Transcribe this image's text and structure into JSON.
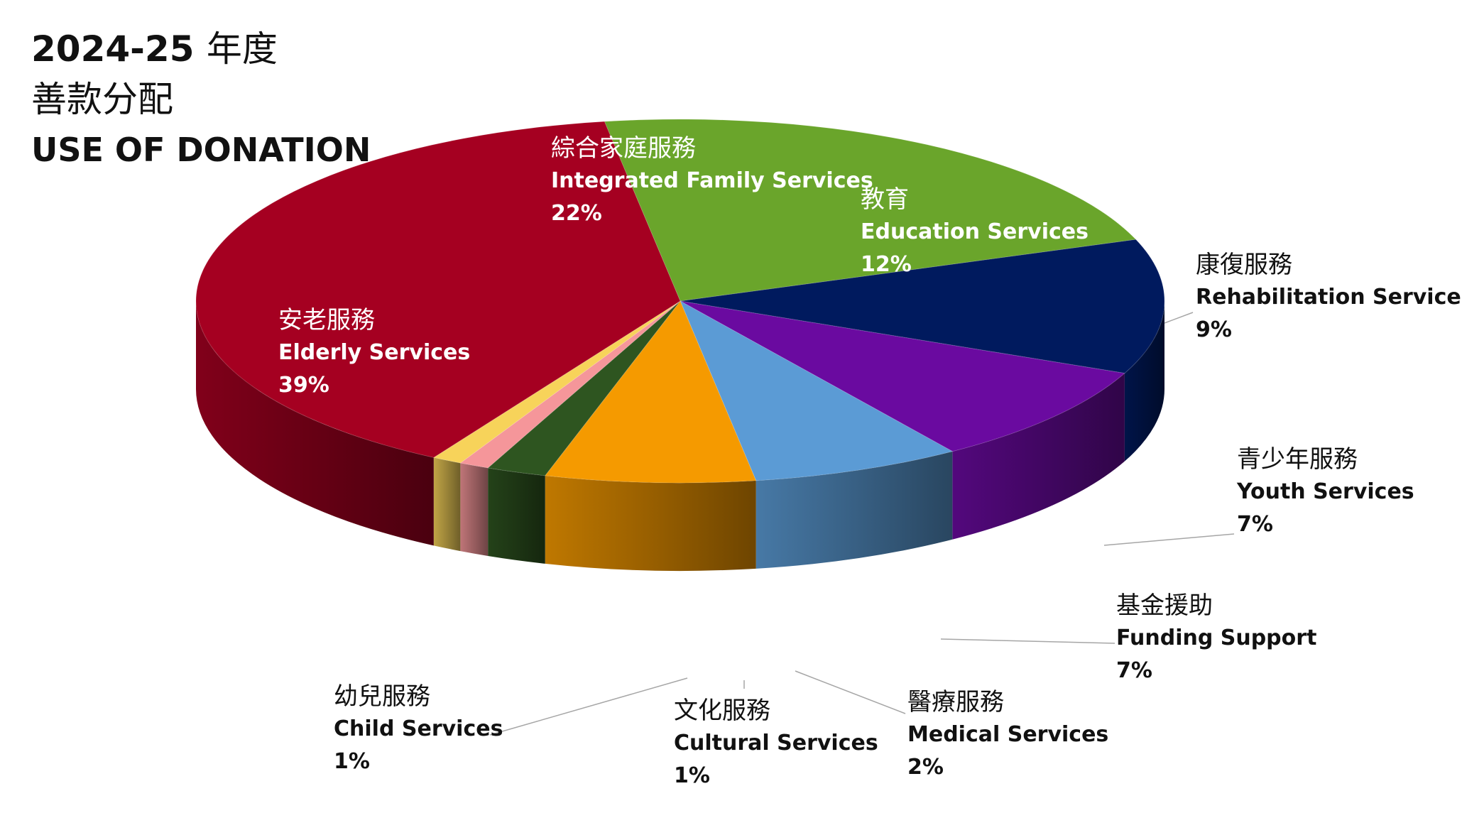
{
  "title": {
    "year": "2024-25",
    "year_suffix": "年度",
    "zh": "善款分配",
    "en": "USE OF DONATION"
  },
  "chart_data": {
    "type": "pie",
    "style": "3d",
    "slices": [
      {
        "zh": "綜合家庭服務",
        "en": "Integrated Family Services",
        "value": 22,
        "label": "22%",
        "color": "#6aa52b"
      },
      {
        "zh": "教育",
        "en": "Education Services",
        "value": 12,
        "label": "12%",
        "color": "#001a5e"
      },
      {
        "zh": "康復服務",
        "en": "Rehabilitation Services",
        "value": 9,
        "label": "9%",
        "color": "#6a0aa0"
      },
      {
        "zh": "青少年服務",
        "en": "Youth Services",
        "value": 7,
        "label": "7%",
        "color": "#5b9bd5"
      },
      {
        "zh": "基金援助",
        "en": "Funding Support",
        "value": 7,
        "label": "7%",
        "color": "#f59a00"
      },
      {
        "zh": "醫療服務",
        "en": "Medical Services",
        "value": 2,
        "label": "2%",
        "color": "#2e5520"
      },
      {
        "zh": "文化服務",
        "en": "Cultural Services",
        "value": 1,
        "label": "1%",
        "color": "#f5969a"
      },
      {
        "zh": "幼兒服務",
        "en": "Child Services",
        "value": 1,
        "label": "1%",
        "color": "#f7d35a"
      },
      {
        "zh": "安老服務",
        "en": "Elderly Services",
        "value": 39,
        "label": "39%",
        "color": "#a50021"
      }
    ]
  }
}
